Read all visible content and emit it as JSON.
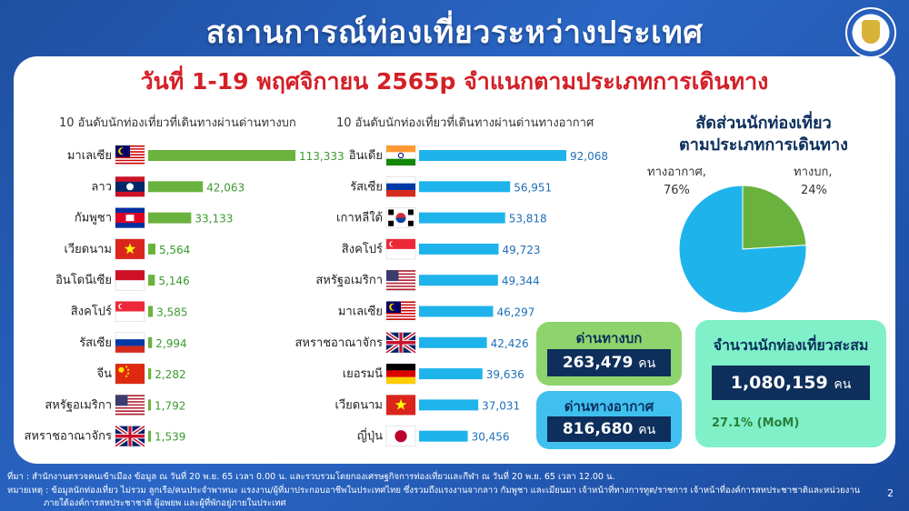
{
  "header": {
    "title": "สถานการณ์ท่องเที่ยวระหว่างประเทศ",
    "subtitle": "วันที่ 1-19 พฤศจิกายน 2565p จำแนกตามประเภทการเดินทาง"
  },
  "colors": {
    "land": "#6ab23e",
    "air": "#1fb3ec",
    "title_red": "#d32027",
    "navy": "#0e2e5b"
  },
  "chart_data": [
    {
      "type": "bar",
      "title": "10 อันดับนักท่องเที่ยวที่เดินทางผ่านด่านทางบก",
      "categories": [
        "มาเลเซีย",
        "ลาว",
        "กัมพูชา",
        "เวียดนาม",
        "อินโดนีเซีย",
        "สิงคโปร์",
        "รัสเซีย",
        "จีน",
        "สหรัฐอเมริกา",
        "สหราชอาณาจักร"
      ],
      "values": [
        113333,
        42063,
        33133,
        5564,
        5146,
        3585,
        2994,
        2282,
        1792,
        1539
      ],
      "value_labels": [
        "113,333",
        "42,063",
        "33,133",
        "5,564",
        "5,146",
        "3,585",
        "2,994",
        "2,282",
        "1,792",
        "1,539"
      ],
      "flag_icons": [
        "malaysia-flag-icon",
        "laos-flag-icon",
        "cambodia-flag-icon",
        "vietnam-flag-icon",
        "indonesia-flag-icon",
        "singapore-flag-icon",
        "russia-flag-icon",
        "china-flag-icon",
        "usa-flag-icon",
        "uk-flag-icon"
      ],
      "color": "#6ab23e",
      "orientation": "horizontal"
    },
    {
      "type": "bar",
      "title": "10 อันดับนักท่องเที่ยวที่เดินทางผ่านด่านทางอากาศ",
      "categories": [
        "อินเดีย",
        "รัสเซีย",
        "เกาหลีใต้",
        "สิงคโปร์",
        "สหรัฐอเมริกา",
        "มาเลเซีย",
        "สหราชอาณาจักร",
        "เยอรมนี",
        "เวียดนาม",
        "ญี่ปุ่น"
      ],
      "values": [
        92068,
        56951,
        53818,
        49723,
        49344,
        46297,
        42426,
        39636,
        37031,
        30456
      ],
      "value_labels": [
        "92,068",
        "56,951",
        "53,818",
        "49,723",
        "49,344",
        "46,297",
        "42,426",
        "39,636",
        "37,031",
        "30,456"
      ],
      "flag_icons": [
        "india-flag-icon",
        "russia-flag-icon",
        "south-korea-flag-icon",
        "singapore-flag-icon",
        "usa-flag-icon",
        "malaysia-flag-icon",
        "uk-flag-icon",
        "germany-flag-icon",
        "vietnam-flag-icon",
        "japan-flag-icon"
      ],
      "color": "#1fb3ec",
      "orientation": "horizontal"
    },
    {
      "type": "pie",
      "title": "สัดส่วนนักท่องเที่ยว ตามประเภทการเดินทาง",
      "title_lines": [
        "สัดส่วนนักท่องเที่ยว",
        "ตามประเภทการเดินทาง"
      ],
      "slices": [
        {
          "name": "ทางอากาศ,",
          "value": 76,
          "label": "76%",
          "color": "#1fb3ec"
        },
        {
          "name": "ทางบก,",
          "value": 24,
          "label": "24%",
          "color": "#6ab23e"
        }
      ]
    }
  ],
  "summary": {
    "land_heading": "ด่านทางบก",
    "land_value": "263,479",
    "air_heading": "ด่านทางอากาศ",
    "air_value": "816,680",
    "unit": "คน",
    "total_heading": "จำนวนนักท่องเที่ยวสะสม",
    "total_value": "1,080,159",
    "mom": "27.1% (MoM)"
  },
  "footer": {
    "source": "ที่มา : สำนักงานตรวจคนเข้าเมือง ข้อมูล ณ วันที่ 20 พ.ย. 65 เวลา 0.00 น. และรวบรวมโดยกองเศรษฐกิจการท่องเที่ยวและกีฬา ณ วันที่ 20 พ.ย. 65 เวลา 12.00 น.",
    "note_line1": "หมายเหตุ : ข้อมูลนักท่องเที่ยว ไม่รวม ลูกเรือ/คนประจำพาหนะ แรงงาน/ผู้ที่มาประกอบอาชีพในประเทศไทย ซึ่งรวมถึงแรงงานจากลาว กัมพูชา และเมียนมา เจ้าหน้าที่ทางการทูต/ราชการ เจ้าหน้าที่องค์การสหประชาชาติและหน่วยงาน",
    "note_line2": "ภายใต้องค์การสหประชาชาติ ผู้อพยพ และผู้ที่พักอยู่ภายในประเทศ",
    "page_number": "2"
  }
}
